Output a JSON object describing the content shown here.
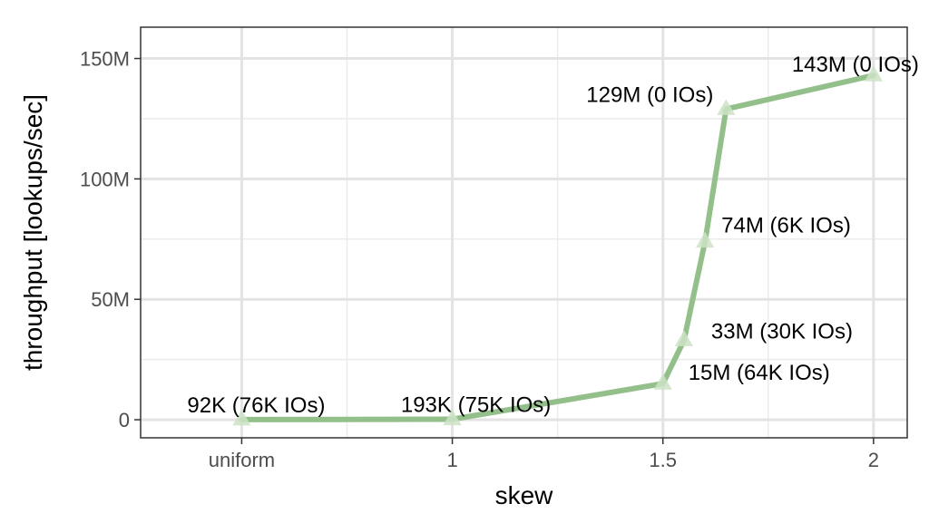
{
  "chart_data": {
    "type": "line",
    "xlabel": "skew",
    "ylabel": "throughput [lookups/sec]",
    "x_tick_labels": [
      "uniform",
      "1",
      "1.5",
      "2"
    ],
    "x_tick_values": [
      0.5,
      1,
      1.5,
      2
    ],
    "y_tick_labels": [
      "0",
      "50M",
      "100M",
      "150M"
    ],
    "y_tick_values": [
      0,
      50000000,
      100000000,
      150000000
    ],
    "xlim": [
      0.26,
      2.08
    ],
    "ylim": [
      -7500000,
      163000000
    ],
    "grid": true,
    "legend": "none",
    "series": [
      {
        "color": "#93c08a",
        "marker": "triangle",
        "points": [
          {
            "x": 0.5,
            "y": 92000,
            "label": "92K (76K IOs)"
          },
          {
            "x": 1.0,
            "y": 193000,
            "label": "193K (75K IOs)"
          },
          {
            "x": 1.5,
            "y": 15000000,
            "label": "15M (64K IOs)"
          },
          {
            "x": 1.55,
            "y": 33000000,
            "label": "33M (30K IOs)"
          },
          {
            "x": 1.6,
            "y": 74000000,
            "label": "74M (6K IOs)"
          },
          {
            "x": 1.65,
            "y": 129000000,
            "label": "129M (0 IOs)"
          },
          {
            "x": 2.0,
            "y": 143000000,
            "label": "143M (0 IOs)"
          }
        ]
      }
    ]
  }
}
